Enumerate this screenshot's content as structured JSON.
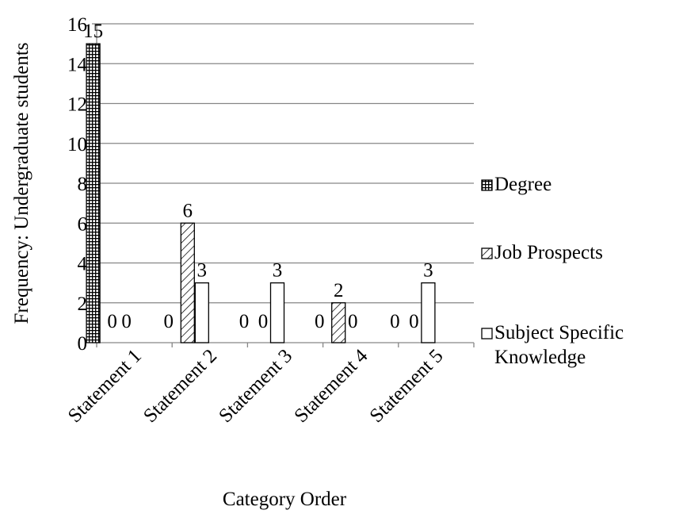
{
  "chart_data": {
    "type": "bar",
    "title": "",
    "xlabel": "Category Order",
    "ylabel": "Frequency: Undergraduate students",
    "ylim": [
      0,
      16
    ],
    "yticks": [
      0,
      2,
      4,
      6,
      8,
      10,
      12,
      14,
      16
    ],
    "grid": true,
    "legend_position": "right",
    "categories": [
      "Statement 1",
      "Statement 2",
      "Statement 3",
      "Statement 4",
      "Statement 5"
    ],
    "series": [
      {
        "name": "Degree",
        "pattern": "grid",
        "values": [
          15,
          0,
          0,
          0,
          0
        ]
      },
      {
        "name": "Job Prospects",
        "pattern": "diagonal",
        "values": [
          0,
          6,
          0,
          2,
          0
        ]
      },
      {
        "name": "Subject Specific Knowledge",
        "pattern": "solid-white",
        "values": [
          0,
          3,
          3,
          0,
          3
        ]
      }
    ],
    "legend": [
      {
        "lines": [
          "Degree"
        ]
      },
      {
        "lines": [
          "Job Prospects"
        ]
      },
      {
        "lines": [
          "Subject Specific",
          "Knowledge"
        ]
      }
    ],
    "colors": {
      "stroke": "#000000",
      "grid": "#868686",
      "fill": "#ffffff"
    }
  }
}
